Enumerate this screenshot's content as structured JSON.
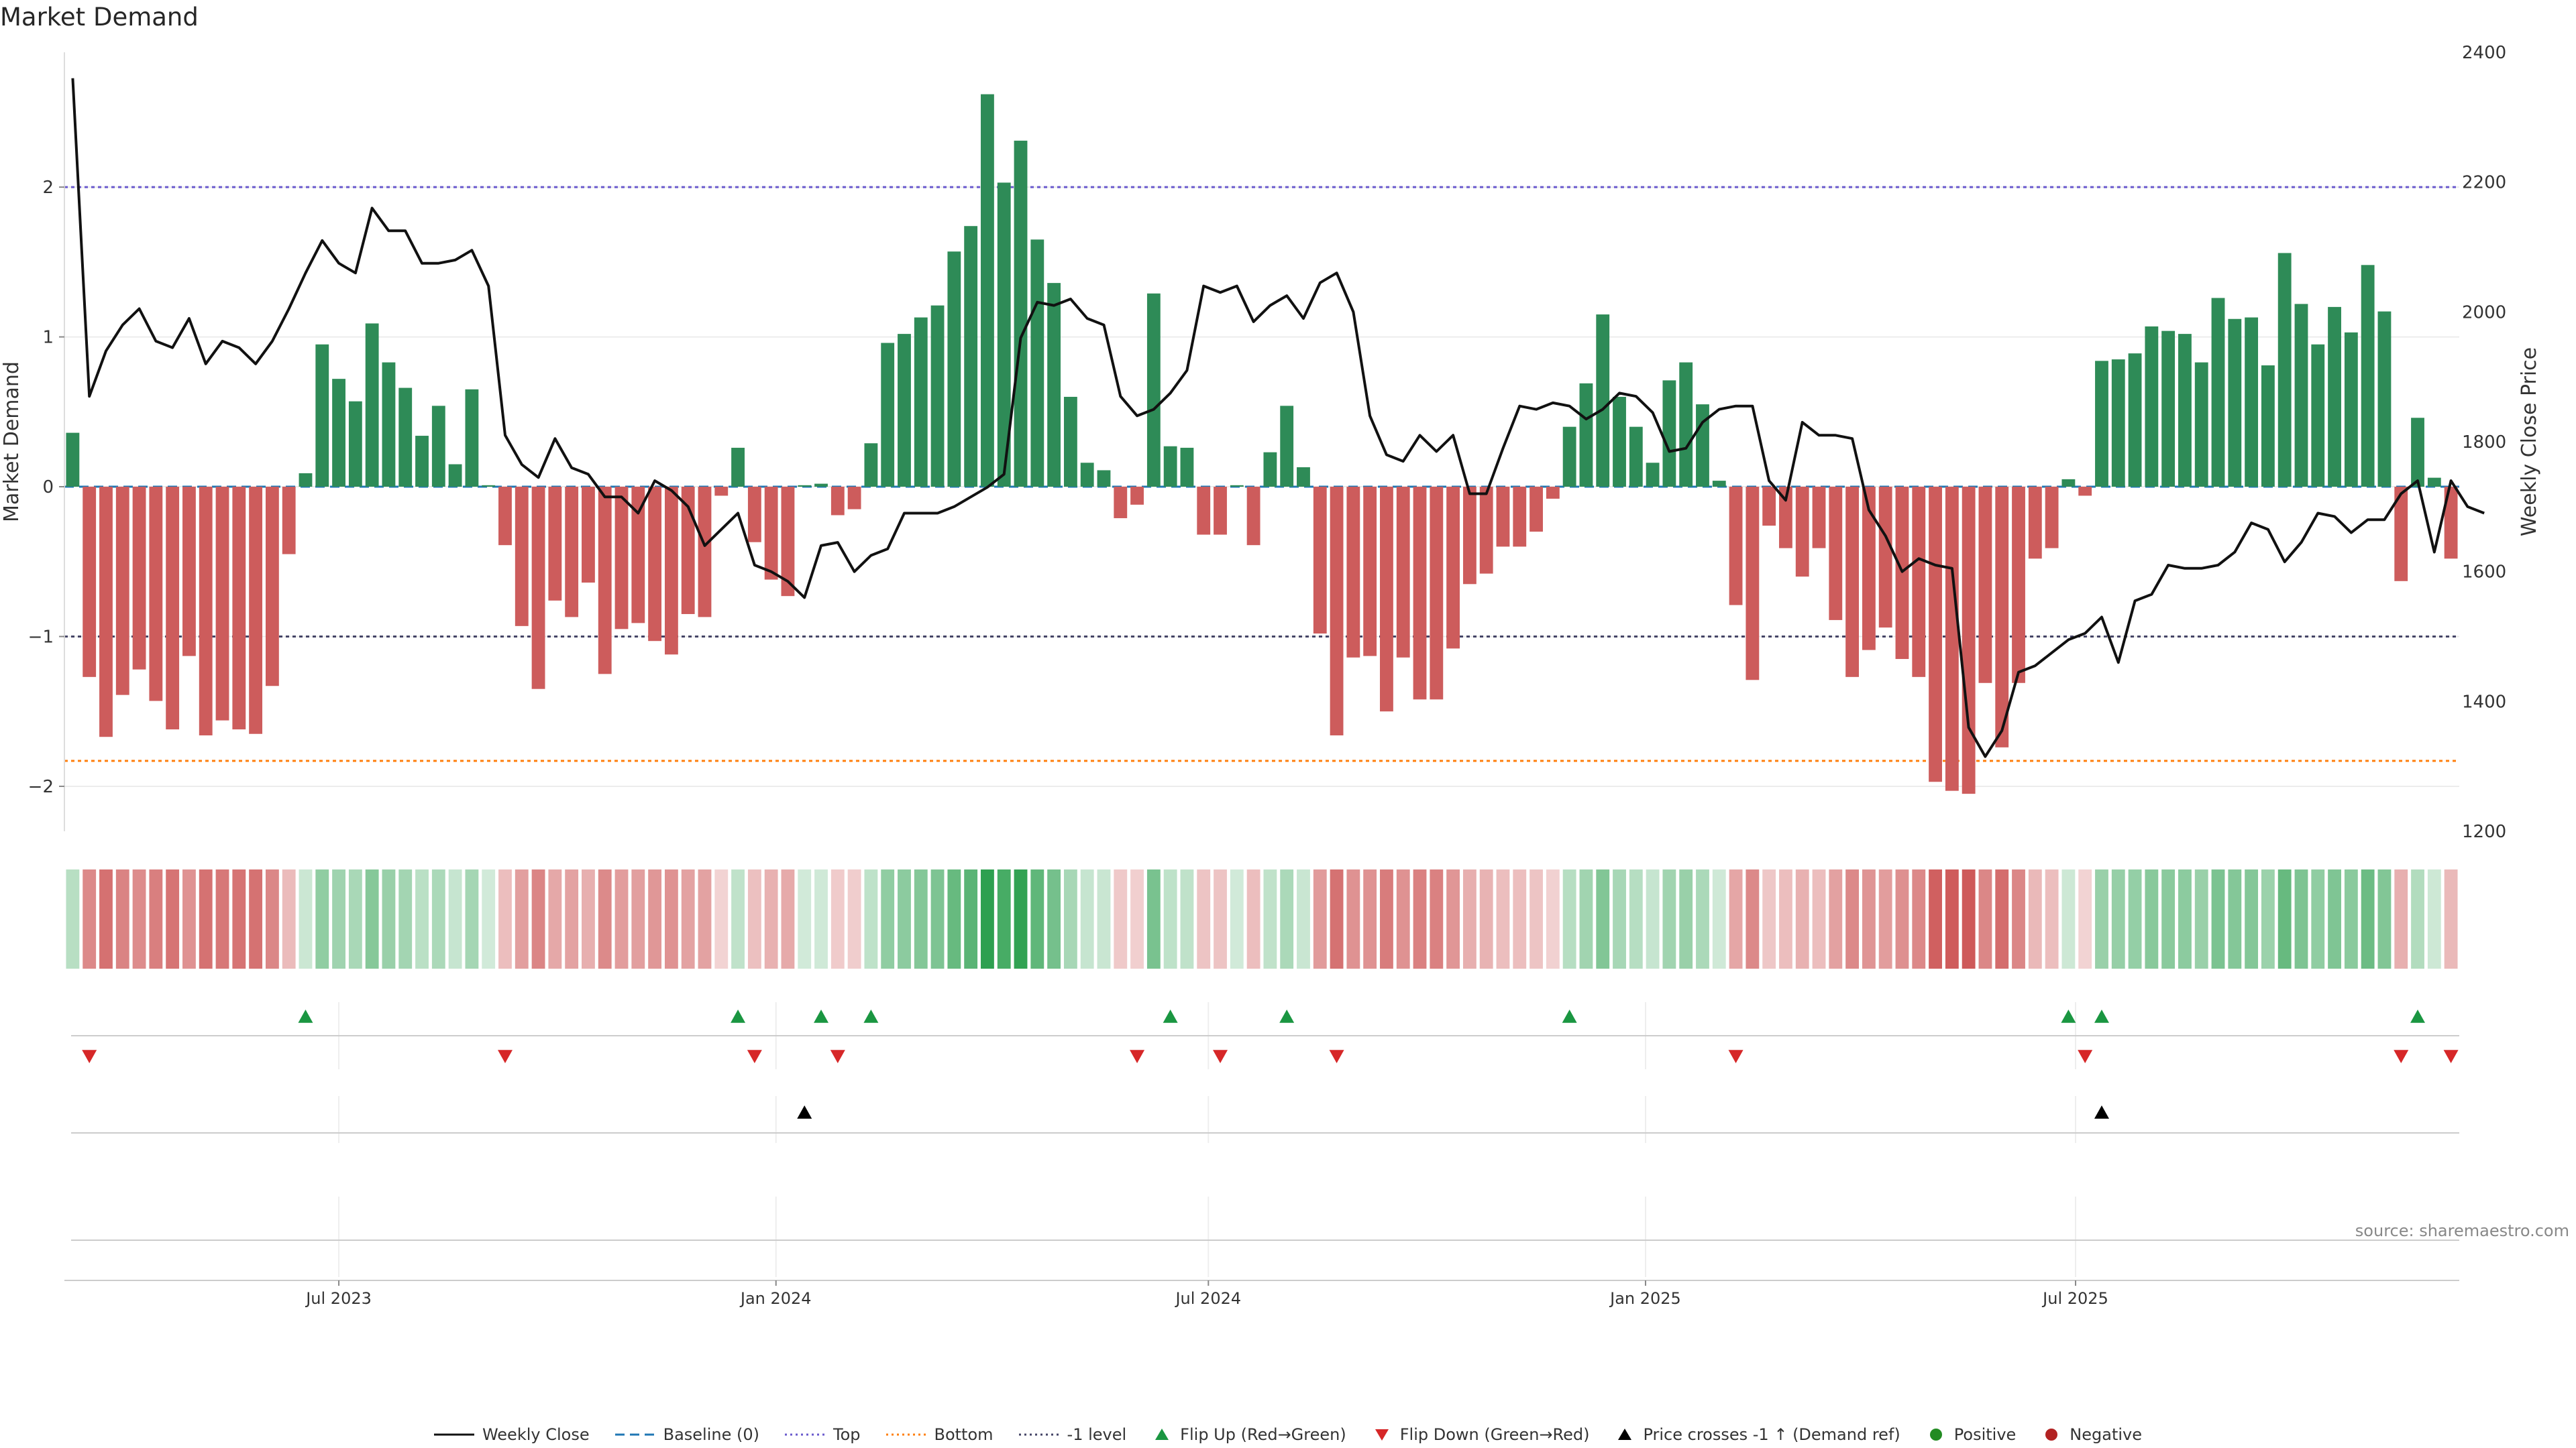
{
  "chart_data": {
    "type": "bar",
    "title": "Market Demand",
    "ylabel": "Market Demand",
    "y2label": "Weekly Close Price",
    "ylim": [
      -2.3,
      2.9
    ],
    "y2lim": [
      1200,
      2400
    ],
    "yticks": [
      -2,
      -1,
      0,
      1,
      2
    ],
    "y2ticks": [
      1200,
      1400,
      1600,
      1800,
      2000,
      2200,
      2400
    ],
    "x_start": "2023-03-11",
    "x_step_days": 7,
    "xticks": [
      "2023-07-01",
      "2024-01-01",
      "2024-07-01",
      "2025-01-01",
      "2025-07-01"
    ],
    "xtick_labels": [
      "Jul 2023",
      "Jan 2024",
      "Jul 2024",
      "Jan 2025",
      "Jul 2025"
    ],
    "reference_lines": [
      {
        "name": "Baseline (0)",
        "value": 0,
        "color": "#1f77b4",
        "style": "dashed"
      },
      {
        "name": "Top",
        "value": 2.0,
        "color": "#6a5acd",
        "style": "dotted"
      },
      {
        "name": "Bottom",
        "value": -1.83,
        "color": "#ff7f0e",
        "style": "dotted"
      },
      {
        "name": "-1 level",
        "value": -1.0,
        "color": "#444466",
        "style": "dotted"
      }
    ],
    "colors": {
      "positive": "#2e8b57",
      "negative": "#cd5c5c",
      "price": "#111111",
      "flip_up": "#1a9641",
      "flip_down": "#d62728",
      "cross": "#000000"
    },
    "series": [
      {
        "name": "Market Demand",
        "values": [
          0.36,
          -1.27,
          -1.67,
          -1.39,
          -1.22,
          -1.43,
          -1.62,
          -1.13,
          -1.66,
          -1.56,
          -1.62,
          -1.65,
          -1.33,
          -0.45,
          0.09,
          0.95,
          0.72,
          0.57,
          1.09,
          0.83,
          0.66,
          0.34,
          0.54,
          0.15,
          0.65,
          0.01,
          -0.39,
          -0.93,
          -1.35,
          -0.76,
          -0.87,
          -0.64,
          -1.25,
          -0.95,
          -0.91,
          -1.03,
          -1.12,
          -0.85,
          -0.87,
          -0.06,
          0.26,
          -0.37,
          -0.62,
          -0.73,
          0.01,
          0.02,
          -0.19,
          -0.15,
          0.29,
          0.96,
          1.02,
          1.13,
          1.21,
          1.57,
          1.74,
          2.62,
          2.03,
          2.31,
          1.65,
          1.36,
          0.6,
          0.16,
          0.11,
          -0.21,
          -0.12,
          1.29,
          0.27,
          0.26,
          -0.32,
          -0.32,
          0.01,
          -0.39,
          0.23,
          0.54,
          0.13,
          -0.98,
          -1.66,
          -1.14,
          -1.13,
          -1.5,
          -1.14,
          -1.42,
          -1.42,
          -1.08,
          -0.65,
          -0.58,
          -0.4,
          -0.4,
          -0.3,
          -0.08,
          0.4,
          0.69,
          1.15,
          0.6,
          0.4,
          0.16,
          0.71,
          0.83,
          0.55,
          0.04,
          -0.79,
          -1.29,
          -0.26,
          -0.41,
          -0.6,
          -0.41,
          -0.89,
          -1.27,
          -1.09,
          -0.94,
          -1.15,
          -1.27,
          -1.97,
          -2.03,
          -2.05,
          -1.31,
          -1.74,
          -1.31,
          -0.48,
          -0.41,
          0.05,
          -0.06,
          0.84,
          0.85,
          0.89,
          1.07,
          1.04,
          1.02,
          0.83,
          1.26,
          1.12,
          1.13,
          0.81,
          1.56,
          1.22,
          0.95,
          1.2,
          1.03,
          1.48,
          1.17,
          -0.63,
          0.46,
          0.06,
          -0.48
        ]
      },
      {
        "name": "Weekly Close",
        "values": [
          2360,
          1870,
          1940,
          1980,
          2005,
          1955,
          1945,
          1990,
          1920,
          1955,
          1945,
          1920,
          1955,
          2005,
          2060,
          2110,
          2075,
          2060,
          2160,
          2125,
          2125,
          2075,
          2075,
          2080,
          2095,
          2040,
          1810,
          1765,
          1745,
          1805,
          1760,
          1750,
          1715,
          1715,
          1690,
          1740,
          1725,
          1700,
          1640,
          1665,
          1690,
          1610,
          1600,
          1585,
          1560,
          1640,
          1645,
          1600,
          1625,
          1635,
          1690,
          1690,
          1690,
          1700,
          1715,
          1730,
          1750,
          1960,
          2015,
          2010,
          2020,
          1990,
          1980,
          1870,
          1840,
          1850,
          1875,
          1910,
          2040,
          2030,
          2040,
          1985,
          2010,
          2025,
          1990,
          2045,
          2060,
          2000,
          1840,
          1780,
          1770,
          1810,
          1785,
          1810,
          1720,
          1720,
          1790,
          1855,
          1850,
          1860,
          1855,
          1835,
          1850,
          1875,
          1870,
          1845,
          1785,
          1790,
          1830,
          1850,
          1855,
          1855,
          1740,
          1710,
          1830,
          1810,
          1810,
          1805,
          1695,
          1655,
          1600,
          1620,
          1610,
          1605,
          1360,
          1315,
          1355,
          1445,
          1455,
          1475,
          1495,
          1505,
          1530,
          1460,
          1555,
          1565,
          1610,
          1605,
          1605,
          1610,
          1630,
          1675,
          1665,
          1615,
          1645,
          1690,
          1685,
          1660,
          1680,
          1680,
          1720,
          1740,
          1630,
          1740,
          1700,
          1690
        ]
      }
    ],
    "markers": {
      "flip_up_indices": [
        14,
        40,
        45,
        48,
        66,
        73,
        90,
        120,
        122,
        141
      ],
      "flip_down_indices": [
        1,
        26,
        41,
        46,
        64,
        69,
        76,
        100,
        121,
        140,
        143
      ],
      "price_cross_indices": [
        44,
        122
      ]
    }
  },
  "legend": {
    "items": [
      {
        "label": "Weekly Close",
        "kind": "line",
        "color": "#111111",
        "dash": ""
      },
      {
        "label": "Baseline (0)",
        "kind": "line",
        "color": "#1f77b4",
        "dash": "14 8"
      },
      {
        "label": "Top",
        "kind": "line",
        "color": "#6a5acd",
        "dash": "3 5"
      },
      {
        "label": "Bottom",
        "kind": "line",
        "color": "#ff7f0e",
        "dash": "3 5"
      },
      {
        "label": "-1 level",
        "kind": "line",
        "color": "#444466",
        "dash": "3 5"
      },
      {
        "label": "Flip Up (Red→Green)",
        "kind": "tri-up",
        "color": "#1a9641"
      },
      {
        "label": "Flip Down (Green→Red)",
        "kind": "tri-down",
        "color": "#d62728"
      },
      {
        "label": "Price crosses -1 ↑ (Demand ref)",
        "kind": "tri-up",
        "color": "#000000"
      },
      {
        "label": "Positive",
        "kind": "dot",
        "color": "#228b22"
      },
      {
        "label": "Negative",
        "kind": "dot",
        "color": "#b22222"
      }
    ]
  },
  "source_text": "source: sharemaestro.com"
}
